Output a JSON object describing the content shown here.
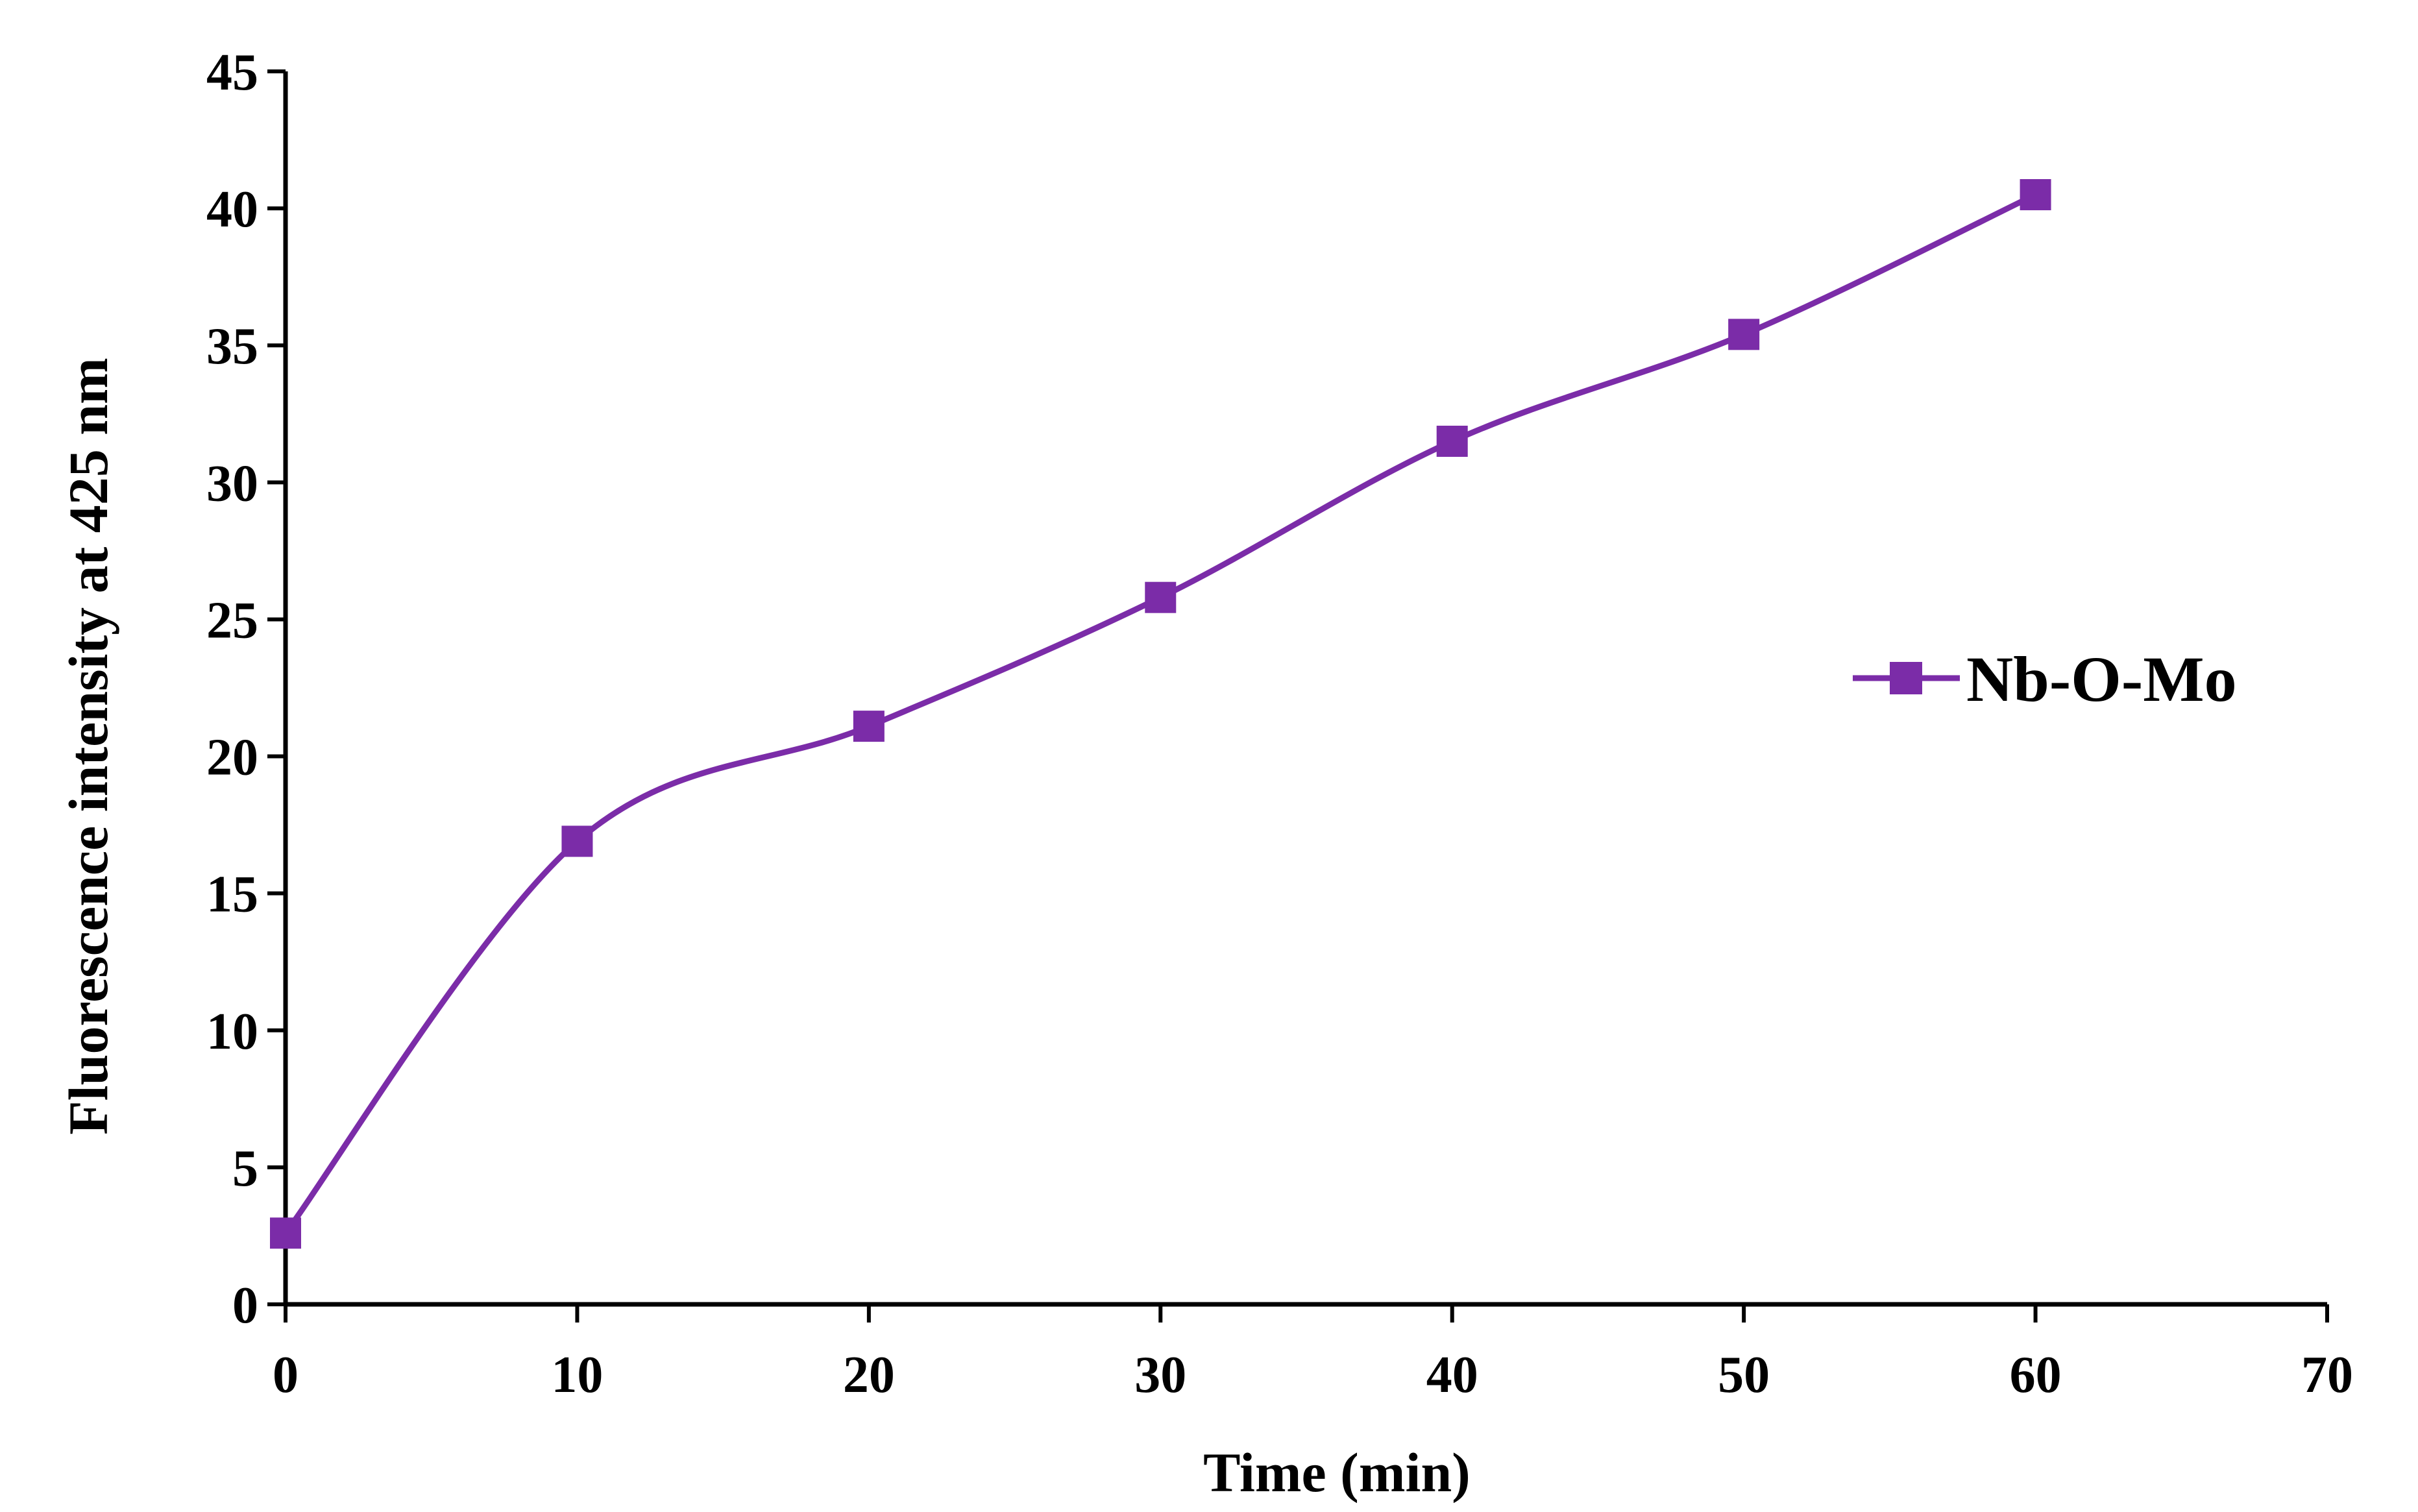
{
  "chart_data": {
    "type": "line",
    "title": "",
    "xlabel": "Time (min)",
    "ylabel": "Fluorescence intensity at 425 nm",
    "xlim": [
      0,
      70
    ],
    "ylim": [
      0,
      45
    ],
    "x_ticks": [
      0,
      10,
      20,
      30,
      40,
      50,
      60,
      70
    ],
    "y_ticks": [
      0,
      5,
      10,
      15,
      20,
      25,
      30,
      35,
      40,
      45
    ],
    "x_tick_labels": [
      "0",
      "10",
      "20",
      "30",
      "40",
      "50",
      "60",
      "70"
    ],
    "y_tick_labels": [
      "0",
      "5",
      "10",
      "15",
      "20",
      "25",
      "30",
      "35",
      "40",
      "45"
    ],
    "grid": false,
    "smooth": true,
    "legend_position": "right",
    "series": [
      {
        "name": "Nb-O-Mo",
        "color": "#7B2CA8",
        "marker": "square",
        "x": [
          0,
          10,
          20,
          30,
          40,
          50,
          60
        ],
        "y": [
          2.6,
          16.9,
          21.1,
          25.8,
          31.5,
          35.4,
          40.5
        ]
      }
    ]
  }
}
